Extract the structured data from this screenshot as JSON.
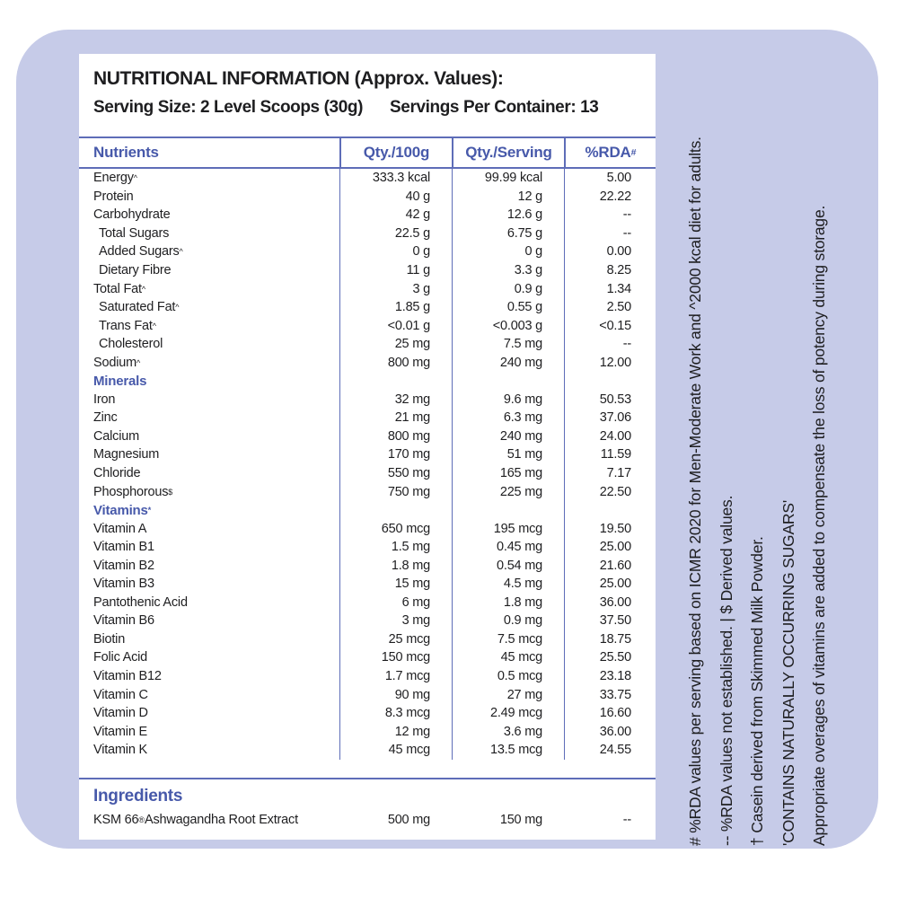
{
  "header": {
    "title": "NUTRITIONAL INFORMATION (Approx. Values):",
    "serving_size": "Serving Size: 2 Level Scoops (30g)",
    "servings_per_container": "Servings Per Container: 13"
  },
  "table": {
    "columns": [
      {
        "label": "Nutrients",
        "sup": ""
      },
      {
        "label": "Qty./100g",
        "sup": ""
      },
      {
        "label": "Qty./Serving",
        "sup": ""
      },
      {
        "label": "%RDA",
        "sup": "#"
      }
    ],
    "rows": [
      {
        "type": "row",
        "label": "Energy",
        "sup": "^",
        "indent": false,
        "q100": "333.3 kcal",
        "qserv": "99.99 kcal",
        "rda": "5.00"
      },
      {
        "type": "row",
        "label": "Protein",
        "sup": "",
        "indent": false,
        "q100": "40 g",
        "qserv": "12 g",
        "rda": "22.22"
      },
      {
        "type": "row",
        "label": "Carbohydrate",
        "sup": "",
        "indent": false,
        "q100": "42 g",
        "qserv": "12.6 g",
        "rda": "--"
      },
      {
        "type": "row",
        "label": "Total Sugars",
        "sup": "",
        "indent": true,
        "q100": "22.5 g",
        "qserv": "6.75 g",
        "rda": "--"
      },
      {
        "type": "row",
        "label": "Added Sugars",
        "sup": "^",
        "indent": true,
        "q100": "0 g",
        "qserv": "0 g",
        "rda": "0.00"
      },
      {
        "type": "row",
        "label": "Dietary Fibre",
        "sup": "",
        "indent": true,
        "q100": "11 g",
        "qserv": "3.3 g",
        "rda": "8.25"
      },
      {
        "type": "row",
        "label": "Total Fat",
        "sup": "^",
        "indent": false,
        "q100": "3 g",
        "qserv": "0.9 g",
        "rda": "1.34"
      },
      {
        "type": "row",
        "label": "Saturated Fat",
        "sup": "^",
        "indent": true,
        "q100": "1.85 g",
        "qserv": "0.55 g",
        "rda": "2.50"
      },
      {
        "type": "row",
        "label": "Trans Fat",
        "sup": "^",
        "indent": true,
        "q100": "<0.01 g",
        "qserv": "<0.003 g",
        "rda": "<0.15"
      },
      {
        "type": "row",
        "label": "Cholesterol",
        "sup": "",
        "indent": true,
        "q100": "25 mg",
        "qserv": "7.5 mg",
        "rda": "--"
      },
      {
        "type": "row",
        "label": "Sodium",
        "sup": "^",
        "indent": false,
        "q100": "800 mg",
        "qserv": "240 mg",
        "rda": "12.00"
      },
      {
        "type": "section",
        "label": "Minerals",
        "sup": ""
      },
      {
        "type": "row",
        "label": "Iron",
        "sup": "",
        "indent": false,
        "q100": "32 mg",
        "qserv": "9.6 mg",
        "rda": "50.53"
      },
      {
        "type": "row",
        "label": "Zinc",
        "sup": "",
        "indent": false,
        "q100": "21 mg",
        "qserv": "6.3 mg",
        "rda": "37.06"
      },
      {
        "type": "row",
        "label": "Calcium",
        "sup": "",
        "indent": false,
        "q100": "800 mg",
        "qserv": "240 mg",
        "rda": "24.00"
      },
      {
        "type": "row",
        "label": "Magnesium",
        "sup": "",
        "indent": false,
        "q100": "170 mg",
        "qserv": "51 mg",
        "rda": "11.59"
      },
      {
        "type": "row",
        "label": "Chloride",
        "sup": "",
        "indent": false,
        "q100": "550 mg",
        "qserv": "165 mg",
        "rda": "7.17"
      },
      {
        "type": "row",
        "label": "Phosphorous",
        "sup": "$",
        "indent": false,
        "q100": "750 mg",
        "qserv": "225 mg",
        "rda": "22.50"
      },
      {
        "type": "section",
        "label": "Vitamins",
        "sup": "*"
      },
      {
        "type": "row",
        "label": "Vitamin A",
        "sup": "",
        "indent": false,
        "q100": "650 mcg",
        "qserv": "195 mcg",
        "rda": "19.50"
      },
      {
        "type": "row",
        "label": "Vitamin B1",
        "sup": "",
        "indent": false,
        "q100": "1.5 mg",
        "qserv": "0.45 mg",
        "rda": "25.00"
      },
      {
        "type": "row",
        "label": "Vitamin B2",
        "sup": "",
        "indent": false,
        "q100": "1.8 mg",
        "qserv": "0.54 mg",
        "rda": "21.60"
      },
      {
        "type": "row",
        "label": "Vitamin B3",
        "sup": "",
        "indent": false,
        "q100": "15 mg",
        "qserv": "4.5 mg",
        "rda": "25.00"
      },
      {
        "type": "row",
        "label": "Pantothenic Acid",
        "sup": "",
        "indent": false,
        "q100": "6 mg",
        "qserv": "1.8 mg",
        "rda": "36.00"
      },
      {
        "type": "row",
        "label": "Vitamin B6",
        "sup": "",
        "indent": false,
        "q100": "3 mg",
        "qserv": "0.9 mg",
        "rda": "37.50"
      },
      {
        "type": "row",
        "label": "Biotin",
        "sup": "",
        "indent": false,
        "q100": "25 mcg",
        "qserv": "7.5 mcg",
        "rda": "18.75"
      },
      {
        "type": "row",
        "label": "Folic Acid",
        "sup": "",
        "indent": false,
        "q100": "150 mcg",
        "qserv": "45 mcg",
        "rda": "25.50"
      },
      {
        "type": "row",
        "label": "Vitamin B12",
        "sup": "",
        "indent": false,
        "q100": "1.7 mcg",
        "qserv": "0.5 mcg",
        "rda": "23.18"
      },
      {
        "type": "row",
        "label": "Vitamin C",
        "sup": "",
        "indent": false,
        "q100": "90 mg",
        "qserv": "27 mg",
        "rda": "33.75"
      },
      {
        "type": "row",
        "label": "Vitamin D",
        "sup": "",
        "indent": false,
        "q100": "8.3 mcg",
        "qserv": "2.49 mcg",
        "rda": "16.60"
      },
      {
        "type": "row",
        "label": "Vitamin E",
        "sup": "",
        "indent": false,
        "q100": "12 mg",
        "qserv": "3.6 mg",
        "rda": "36.00"
      },
      {
        "type": "row",
        "label": "Vitamin K",
        "sup": "",
        "indent": false,
        "q100": "45 mcg",
        "qserv": "13.5 mcg",
        "rda": "24.55"
      }
    ]
  },
  "ingredients": {
    "heading": "Ingredients",
    "rows": [
      {
        "label": "KSM 66",
        "sup": "®",
        "rest": " Ashwagandha Root Extract",
        "q100": "500 mg",
        "qserv": "150 mg",
        "rda": "--"
      }
    ]
  },
  "footnotes": [
    "# %RDA values per serving based on ICMR 2020 for Men-Moderate Work and ^2000 kcal diet for adults.",
    "-- %RDA values not established.  |  $ Derived values.",
    "† Casein derived from Skimmed Milk Powder.",
    "'CONTAINS NATURALLY OCCURRING SUGARS'",
    "Appropriate overages of vitamins are added to compensate the loss of potency during storage."
  ],
  "colors": {
    "accent": "#4759aa",
    "line": "#5e6db8",
    "lavender": "#c6cbe8",
    "ink": "#1e1e20"
  }
}
